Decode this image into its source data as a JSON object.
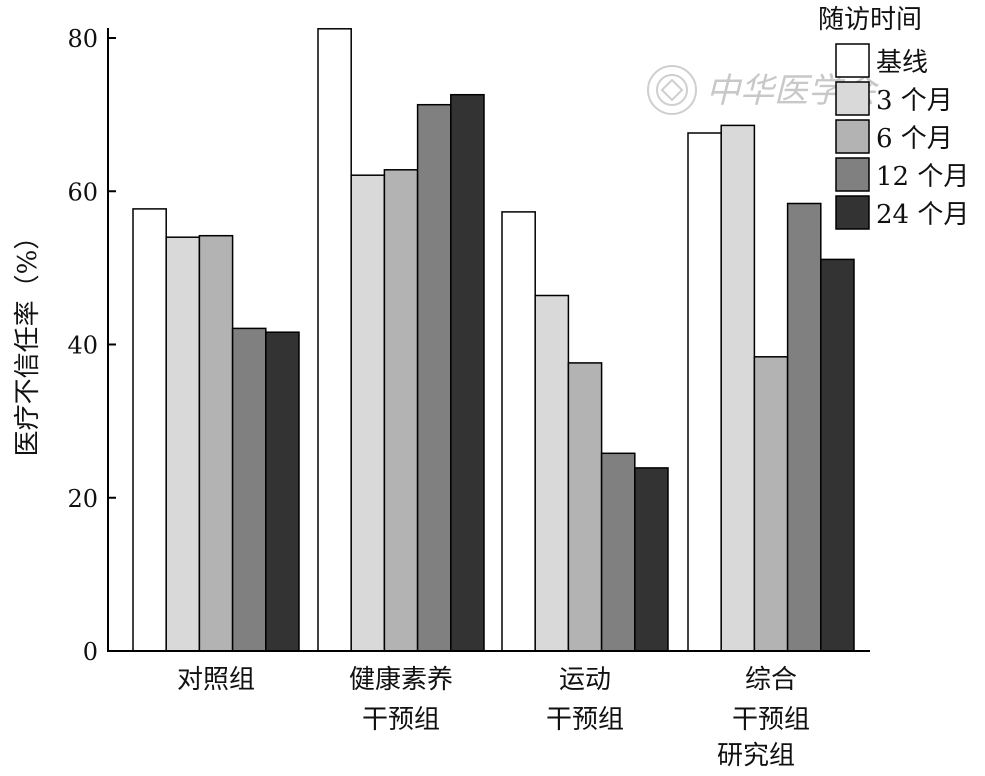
{
  "chart_data": {
    "type": "bar",
    "categories": [
      [
        "对照组"
      ],
      [
        "健康素养",
        "干预组"
      ],
      [
        "运动",
        "干预组"
      ],
      [
        "综合",
        "干预组"
      ]
    ],
    "series": [
      {
        "name": "基线",
        "color": "#ffffff",
        "values": [
          57.7,
          81.2,
          57.3,
          67.6
        ]
      },
      {
        "name": "3 个月",
        "color": "#d9d9d9",
        "values": [
          54.0,
          62.1,
          46.4,
          68.6
        ]
      },
      {
        "name": "6 个月",
        "color": "#b3b3b3",
        "values": [
          54.2,
          62.8,
          37.6,
          38.4
        ]
      },
      {
        "name": "12 个月",
        "color": "#808080",
        "values": [
          42.1,
          71.3,
          25.8,
          58.4
        ]
      },
      {
        "name": "24 个月",
        "color": "#333333",
        "values": [
          41.6,
          72.6,
          23.9,
          51.1
        ]
      }
    ],
    "ylabel": "医疗不信任率（%）",
    "xlabel": "研究组",
    "ylim": [
      0,
      80
    ],
    "yticks": [
      0,
      20,
      40,
      60,
      80
    ],
    "legend_title": "随访时间",
    "legend_position": "top-right",
    "grid": false
  },
  "watermark": {
    "text": "中华医学会",
    "seal_icon": "society-seal-icon"
  }
}
